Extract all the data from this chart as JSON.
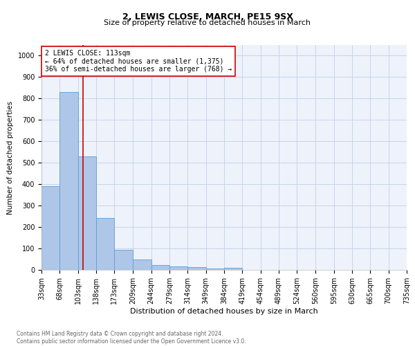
{
  "title1": "2, LEWIS CLOSE, MARCH, PE15 9SX",
  "title2": "Size of property relative to detached houses in March",
  "xlabel": "Distribution of detached houses by size in March",
  "ylabel": "Number of detached properties",
  "annotation_line1": "2 LEWIS CLOSE: 113sqm",
  "annotation_line2": "← 64% of detached houses are smaller (1,375)",
  "annotation_line3": "36% of semi-detached houses are larger (768) →",
  "property_size": 113,
  "bin_edges": [
    33,
    68,
    103,
    138,
    173,
    209,
    244,
    279,
    314,
    349,
    384,
    419,
    454,
    489,
    524,
    560,
    595,
    630,
    665,
    700,
    735
  ],
  "bin_counts": [
    390,
    830,
    530,
    243,
    95,
    50,
    22,
    17,
    12,
    8,
    10,
    0,
    0,
    0,
    0,
    0,
    0,
    0,
    0,
    0
  ],
  "bar_color": "#aec6e8",
  "bar_edge_color": "#5a9fd4",
  "highlight_color": "#cc0000",
  "background_color": "#eef2fb",
  "grid_color": "#c8d4e8",
  "footer_text": "Contains HM Land Registry data © Crown copyright and database right 2024.\nContains public sector information licensed under the Open Government Licence v3.0.",
  "ylim": [
    0,
    1050
  ],
  "yticks": [
    0,
    100,
    200,
    300,
    400,
    500,
    600,
    700,
    800,
    900,
    1000
  ],
  "title1_fontsize": 9,
  "title2_fontsize": 8,
  "xlabel_fontsize": 8,
  "ylabel_fontsize": 7.5,
  "tick_fontsize": 7,
  "ann_fontsize": 7,
  "footer_fontsize": 5.5
}
